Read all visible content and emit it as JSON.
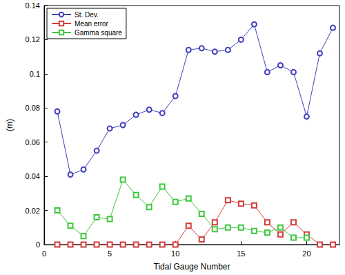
{
  "chart_data": {
    "type": "line",
    "x_label": "Tidal Gauge Number",
    "y_label": "(m)",
    "x": [
      1,
      2,
      3,
      4,
      5,
      6,
      7,
      8,
      9,
      10,
      11,
      12,
      13,
      14,
      15,
      16,
      17,
      18,
      19,
      20,
      21,
      22
    ],
    "series": [
      {
        "name": "St. Dev.",
        "color": "#3f3fbf",
        "marker": "circle",
        "line_style": "solid",
        "values": [
          0.078,
          0.041,
          0.044,
          0.055,
          0.068,
          0.07,
          0.076,
          0.079,
          0.077,
          0.087,
          0.114,
          0.115,
          0.113,
          0.114,
          0.12,
          0.129,
          0.101,
          0.105,
          0.101,
          0.075,
          0.112,
          0.127
        ]
      },
      {
        "name": "Mean error",
        "color": "#d23c3c",
        "marker": "square",
        "line_style": "solid",
        "values": [
          0,
          0,
          0,
          0,
          0,
          0,
          0,
          0,
          0,
          0,
          0.011,
          0.003,
          0.013,
          0.026,
          0.024,
          0.023,
          0.013,
          0.006,
          0.013,
          0.006,
          0,
          0
        ]
      },
      {
        "name": "Gamma square",
        "color": "#3cc83c",
        "marker": "square",
        "line_style": "solid",
        "values": [
          0.02,
          0.011,
          0.005,
          0.016,
          0.015,
          0.038,
          0.029,
          0.022,
          0.034,
          0.025,
          0.027,
          0.018,
          0.009,
          0.01,
          0.01,
          0.008,
          0.007,
          0.01,
          0.004,
          0.004,
          null,
          null
        ]
      }
    ],
    "xlim": [
      0,
      22.5
    ],
    "xticks": [
      0,
      5,
      10,
      15,
      20
    ],
    "ylim": [
      0,
      0.14
    ],
    "yticks": [
      0,
      0.02,
      0.04,
      0.06,
      0.08,
      0.1,
      0.12,
      0.14
    ],
    "grid": false,
    "legend": "upper left"
  }
}
